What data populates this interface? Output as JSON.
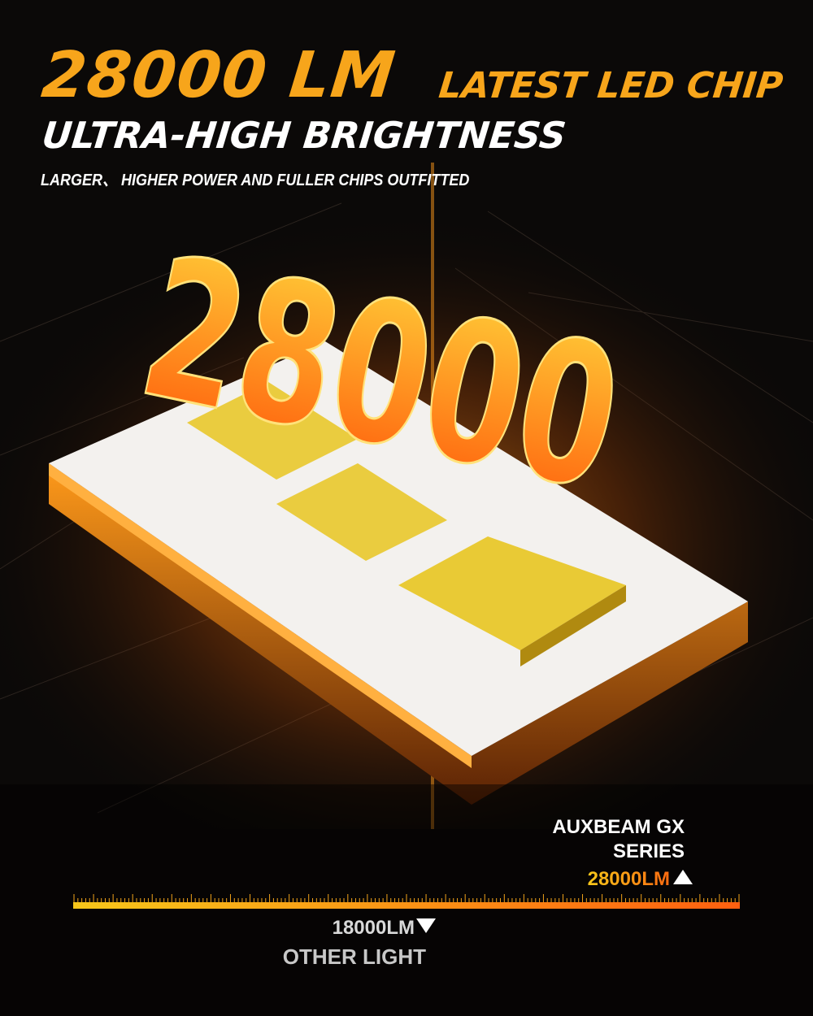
{
  "headline": {
    "lumens": "28000 LM",
    "tag": "LATEST LED CHIP",
    "subtitle": "ULTRA-HIGH BRIGHTNESS",
    "caption": "LARGER、 HIGHER POWER AND FULLER CHIPS OUTFITTED"
  },
  "graphic": {
    "number": "28000"
  },
  "comparison": {
    "brand_line1": "AUXBEAM GX",
    "brand_line2": "SERIES",
    "brand_value": "28000LM",
    "other_value": "18000LM",
    "other_label": "OTHER LIGHT"
  },
  "colors": {
    "accent": "#f7a51b",
    "gradient_start": "#f7c71a",
    "gradient_end": "#ff6a10",
    "background": "#0b0908"
  }
}
